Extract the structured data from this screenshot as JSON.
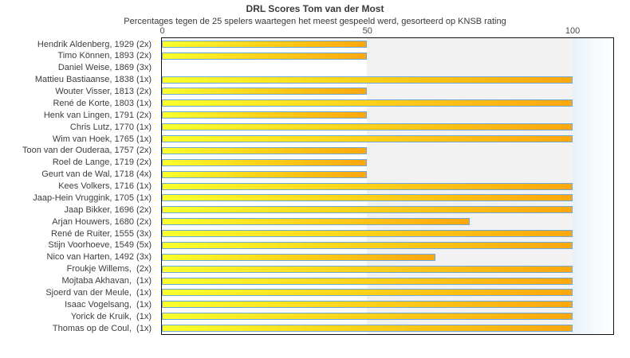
{
  "title": "DRL Scores Tom van der Most",
  "subtitle": "Percentages tegen de 25 spelers waartegen het meest gespeeld werd, gesorteerd op KNSB rating",
  "chart_data": {
    "type": "bar",
    "orientation": "horizontal",
    "title": "DRL Scores Tom van der Most",
    "subtitle": "Percentages tegen de 25 spelers waartegen het meest gespeeld werd, gesorteerd op KNSB rating",
    "xlabel": "",
    "ylabel": "",
    "xlim": [
      0,
      110
    ],
    "ticks": [
      0,
      50,
      100
    ],
    "grid": "shaded-band-50-100",
    "legend": null,
    "categories": [
      "Hendrik Aldenberg, 1929 (2x)",
      "Timo Können, 1893 (2x)",
      "Daniel Weise, 1869 (3x)",
      "Mattieu Bastiaanse, 1838 (1x)",
      "Wouter Visser, 1813 (2x)",
      "René de Korte, 1803 (1x)",
      "Henk van Lingen, 1791 (2x)",
      "Chris Lutz, 1770 (1x)",
      "Wim van Hoek, 1765 (1x)",
      "Toon van der Ouderaa, 1757 (2x)",
      "Roel de Lange, 1719 (2x)",
      "Geurt van de Wal, 1718 (4x)",
      "Kees Volkers, 1716 (1x)",
      "Jaap-Hein Vruggink, 1705 (1x)",
      "Jaap Bikker, 1696 (2x)",
      "Arjan Houwers, 1680 (2x)",
      "René de Ruiter, 1555 (3x)",
      "Stijn Voorhoeve, 1549 (5x)",
      "Nico van Harten, 1492 (3x)",
      "Froukje Willems,  (2x)",
      "Mojtaba Akhavan,  (1x)",
      "Sjoerd van der Meule,  (1x)",
      "Isaac Vogelsang,  (1x)",
      "Yorick de Kruik,  (1x)",
      "Thomas op de Coul,  (1x)"
    ],
    "values": [
      50,
      50,
      0,
      100,
      50,
      100,
      50,
      100,
      100,
      50,
      50,
      50,
      100,
      100,
      100,
      75,
      100,
      100,
      66.7,
      100,
      100,
      100,
      100,
      100,
      100
    ],
    "colors": {
      "bar_gradient_start": "#fdff2d",
      "bar_gradient_end": "#fba70e",
      "bar_border": "#6fa9dc",
      "band_50_100": "#f2f2f2",
      "band_over_100_start": "#e7f1fa",
      "plot_border": "#111111",
      "text": "#3d3d3d"
    }
  }
}
